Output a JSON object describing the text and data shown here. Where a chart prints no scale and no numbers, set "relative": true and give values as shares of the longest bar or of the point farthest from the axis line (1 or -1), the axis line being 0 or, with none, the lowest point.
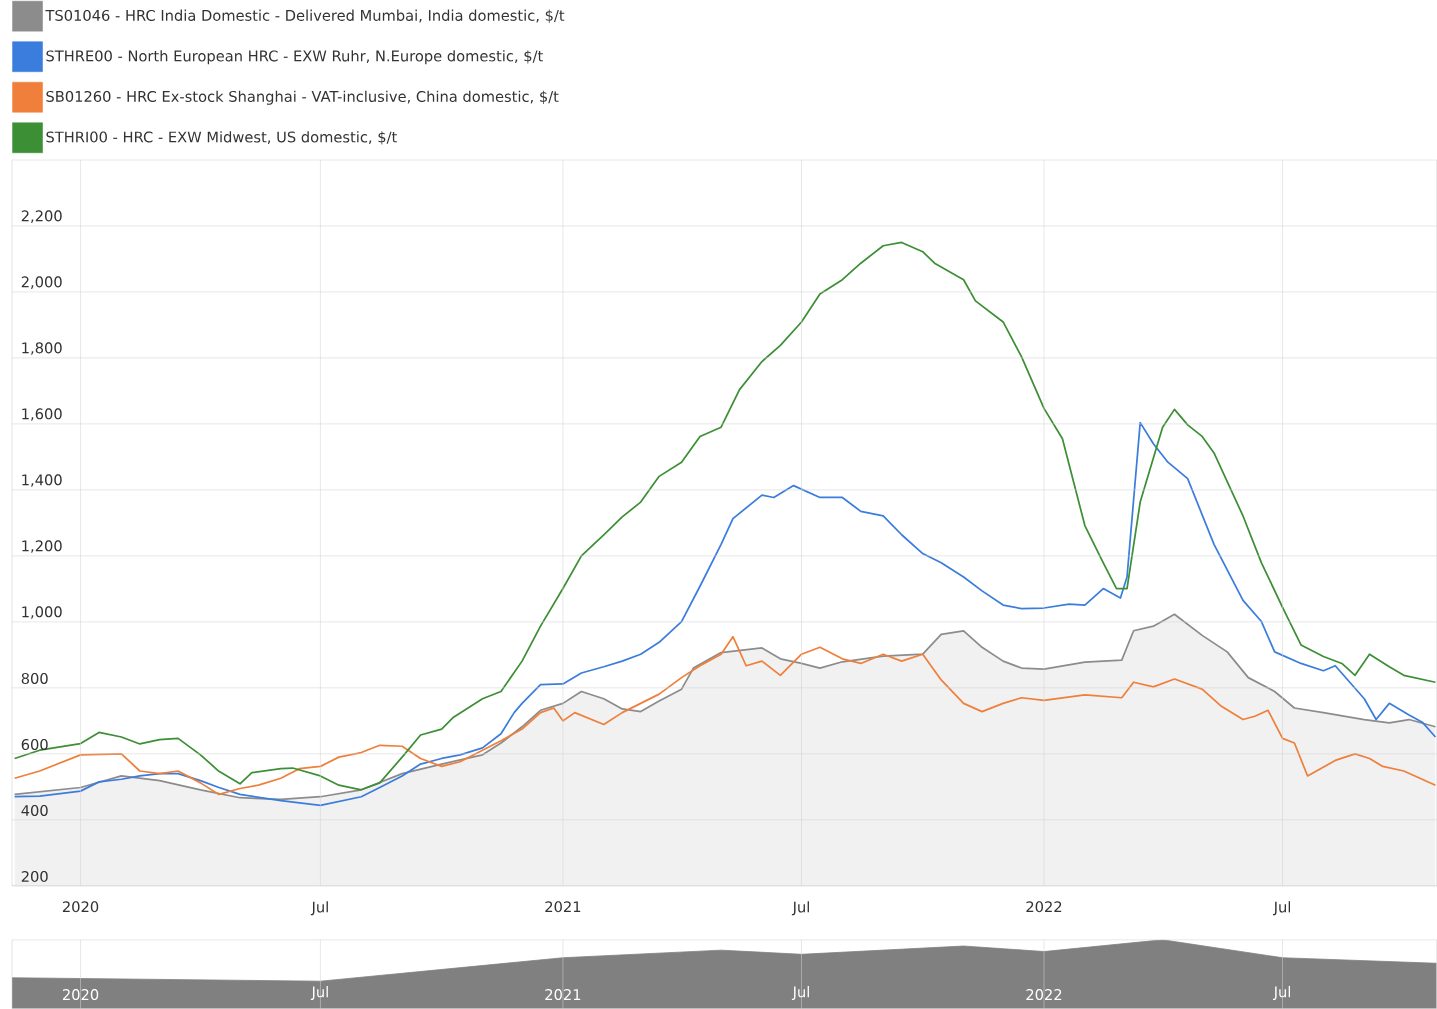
{
  "chart_data": [
    {
      "type": "line",
      "legend": "top",
      "grid": true,
      "marker": "none",
      "line_style": "solid",
      "xlim": [
        "2019-11-10",
        "2022-10-26"
      ],
      "xticks": [
        {
          "value": "2020-01-01",
          "label": "2020"
        },
        {
          "value": "2020-07-01",
          "label": "Jul"
        },
        {
          "value": "2021-01-01",
          "label": "2021"
        },
        {
          "value": "2021-07-01",
          "label": "Jul"
        },
        {
          "value": "2022-01-01",
          "label": "2022"
        },
        {
          "value": "2022-07-01",
          "label": "Jul"
        }
      ],
      "ylim": [
        200,
        2400
      ],
      "yticks": [
        200,
        400,
        600,
        800,
        {
          "value": 1000,
          "label": "1,000"
        },
        {
          "value": 1200,
          "label": "1,200"
        },
        {
          "value": 1400,
          "label": "1,400"
        },
        {
          "value": 1600,
          "label": "1,600"
        },
        {
          "value": 1800,
          "label": "1,800"
        },
        {
          "value": 2000,
          "label": "2,000"
        },
        {
          "value": 2200,
          "label": "2,200"
        }
      ],
      "series": [
        {
          "name": "TS01046 - HRC India Domestic - Delivered Mumbai, India domestic, $/t",
          "type": "area",
          "color": "#8c8c8c",
          "x": [
            "2019-11-12",
            "2020-01-01",
            "2020-02-01",
            "2020-03-01",
            "2020-04-01",
            "2020-05-01",
            "2020-06-01",
            "2020-07-01",
            "2020-08-01",
            "2020-09-01",
            "2020-10-01",
            "2020-11-01",
            "2020-11-15",
            "2020-12-01",
            "2020-12-15",
            "2021-01-01",
            "2021-01-15",
            "2021-02-01",
            "2021-02-15",
            "2021-03-01",
            "2021-03-15",
            "2021-04-01",
            "2021-04-10",
            "2021-05-01",
            "2021-06-01",
            "2021-06-15",
            "2021-07-01",
            "2021-07-15",
            "2021-08-01",
            "2021-09-01",
            "2021-10-01",
            "2021-10-15",
            "2021-11-01",
            "2021-11-15",
            "2021-12-01",
            "2021-12-15",
            "2022-01-01",
            "2022-02-01",
            "2022-03-01",
            "2022-03-10",
            "2022-03-25",
            "2022-04-10",
            "2022-05-01",
            "2022-05-20",
            "2022-06-05",
            "2022-06-25",
            "2022-07-10",
            "2022-08-01",
            "2022-09-01",
            "2022-09-20",
            "2022-10-05",
            "2022-10-25"
          ],
          "values": [
            477,
            498,
            533,
            519,
            491,
            467,
            462,
            470,
            491,
            540,
            569,
            597,
            633,
            682,
            732,
            753,
            789,
            767,
            736,
            728,
            760,
            796,
            860,
            907,
            921,
            888,
            874,
            860,
            879,
            896,
            902,
            962,
            973,
            923,
            881,
            860,
            857,
            878,
            884,
            973,
            987,
            1023,
            959,
            909,
            831,
            789,
            739,
            725,
            704,
            694,
            704,
            682
          ]
        },
        {
          "name": "STHRE00 - North European HRC - EXW Ruhr, N.Europe domestic, $/t",
          "color": "#3b7ddd",
          "x": [
            "2019-11-12",
            "2019-12-01",
            "2020-01-01",
            "2020-01-15",
            "2020-02-01",
            "2020-02-15",
            "2020-03-01",
            "2020-03-15",
            "2020-04-01",
            "2020-04-15",
            "2020-05-01",
            "2020-06-01",
            "2020-07-01",
            "2020-08-01",
            "2020-08-15",
            "2020-09-01",
            "2020-09-15",
            "2020-10-01",
            "2020-10-15",
            "2020-11-01",
            "2020-11-15",
            "2020-11-25",
            "2020-12-01",
            "2020-12-15",
            "2021-01-01",
            "2021-01-15",
            "2021-02-01",
            "2021-02-15",
            "2021-03-01",
            "2021-03-15",
            "2021-04-01",
            "2021-04-15",
            "2021-05-01",
            "2021-05-10",
            "2021-06-01",
            "2021-06-10",
            "2021-06-25",
            "2021-07-15",
            "2021-08-01",
            "2021-08-15",
            "2021-09-01",
            "2021-09-15",
            "2021-10-01",
            "2021-10-15",
            "2021-11-01",
            "2021-11-15",
            "2021-12-01",
            "2021-12-15",
            "2022-01-01",
            "2022-01-20",
            "2022-02-01",
            "2022-02-15",
            "2022-02-28",
            "2022-03-05",
            "2022-03-15",
            "2022-03-25",
            "2022-04-05",
            "2022-04-20",
            "2022-05-10",
            "2022-06-01",
            "2022-06-15",
            "2022-06-25",
            "2022-07-15",
            "2022-08-01",
            "2022-08-10",
            "2022-09-01",
            "2022-09-10",
            "2022-09-20",
            "2022-10-05",
            "2022-10-15",
            "2022-10-25"
          ],
          "values": [
            470,
            472,
            487,
            515,
            523,
            533,
            540,
            540,
            519,
            498,
            477,
            458,
            444,
            470,
            498,
            533,
            569,
            586,
            597,
            618,
            661,
            725,
            753,
            810,
            812,
            845,
            864,
            881,
            902,
            938,
            1001,
            1108,
            1235,
            1313,
            1384,
            1377,
            1413,
            1377,
            1377,
            1335,
            1321,
            1264,
            1207,
            1179,
            1136,
            1094,
            1051,
            1040,
            1042,
            1054,
            1051,
            1101,
            1072,
            1136,
            1604,
            1540,
            1484,
            1434,
            1235,
            1065,
            1001,
            909,
            874,
            852,
            867,
            767,
            704,
            753,
            718,
            696,
            651
          ]
        },
        {
          "name": "SB01260 - HRC Ex-stock Shanghai - VAT-inclusive, China domestic, $/t",
          "color": "#ef7f3a",
          "x": [
            "2019-11-12",
            "2019-12-01",
            "2020-01-01",
            "2020-02-01",
            "2020-02-15",
            "2020-03-01",
            "2020-03-15",
            "2020-04-01",
            "2020-04-15",
            "2020-05-01",
            "2020-05-15",
            "2020-06-01",
            "2020-06-15",
            "2020-07-01",
            "2020-07-15",
            "2020-08-01",
            "2020-08-15",
            "2020-09-01",
            "2020-09-15",
            "2020-10-01",
            "2020-10-15",
            "2020-11-01",
            "2020-11-15",
            "2020-12-01",
            "2020-12-15",
            "2020-12-25",
            "2021-01-01",
            "2021-01-10",
            "2021-02-01",
            "2021-02-15",
            "2021-03-01",
            "2021-03-15",
            "2021-04-01",
            "2021-04-15",
            "2021-05-01",
            "2021-05-10",
            "2021-05-20",
            "2021-06-01",
            "2021-06-15",
            "2021-07-01",
            "2021-07-15",
            "2021-08-01",
            "2021-08-15",
            "2021-09-01",
            "2021-09-15",
            "2021-10-01",
            "2021-10-15",
            "2021-11-01",
            "2021-11-15",
            "2021-12-01",
            "2021-12-15",
            "2022-01-01",
            "2022-02-01",
            "2022-03-01",
            "2022-03-10",
            "2022-03-25",
            "2022-04-10",
            "2022-05-01",
            "2022-05-15",
            "2022-06-01",
            "2022-06-10",
            "2022-06-20",
            "2022-07-01",
            "2022-07-10",
            "2022-07-20",
            "2022-08-10",
            "2022-08-25",
            "2022-09-05",
            "2022-09-15",
            "2022-10-01",
            "2022-10-25"
          ],
          "values": [
            526,
            548,
            597,
            600,
            548,
            540,
            548,
            512,
            477,
            495,
            505,
            526,
            555,
            562,
            590,
            604,
            626,
            623,
            586,
            562,
            576,
            611,
            640,
            675,
            725,
            739,
            700,
            725,
            689,
            725,
            753,
            781,
            831,
            867,
            902,
            955,
            867,
            881,
            838,
            902,
            923,
            888,
            874,
            902,
            881,
            902,
            824,
            753,
            728,
            753,
            770,
            762,
            779,
            770,
            817,
            803,
            827,
            796,
            746,
            704,
            714,
            732,
            647,
            633,
            533,
            580,
            600,
            586,
            562,
            548,
            505
          ]
        },
        {
          "name": "STHRI00 - HRC - EXW Midwest, US domestic, $/t",
          "color": "#3d8f36",
          "x": [
            "2019-11-12",
            "2019-12-01",
            "2020-01-01",
            "2020-01-15",
            "2020-02-01",
            "2020-02-15",
            "2020-03-01",
            "2020-03-15",
            "2020-04-01",
            "2020-04-15",
            "2020-05-01",
            "2020-05-10",
            "2020-06-01",
            "2020-06-10",
            "2020-07-01",
            "2020-07-15",
            "2020-08-01",
            "2020-08-15",
            "2020-09-01",
            "2020-09-15",
            "2020-10-01",
            "2020-10-10",
            "2020-11-01",
            "2020-11-15",
            "2020-12-01",
            "2020-12-15",
            "2021-01-01",
            "2021-01-15",
            "2021-02-01",
            "2021-02-15",
            "2021-03-01",
            "2021-03-15",
            "2021-04-01",
            "2021-04-15",
            "2021-05-01",
            "2021-05-15",
            "2021-06-01",
            "2021-06-15",
            "2021-07-01",
            "2021-07-15",
            "2021-08-01",
            "2021-08-15",
            "2021-09-01",
            "2021-09-15",
            "2021-10-01",
            "2021-10-10",
            "2021-11-01",
            "2021-11-10",
            "2021-12-01",
            "2021-12-15",
            "2022-01-01",
            "2022-01-15",
            "2022-02-01",
            "2022-02-15",
            "2022-02-25",
            "2022-03-05",
            "2022-03-15",
            "2022-04-01",
            "2022-04-10",
            "2022-04-20",
            "2022-05-01",
            "2022-05-10",
            "2022-06-01",
            "2022-06-15",
            "2022-07-01",
            "2022-07-15",
            "2022-08-01",
            "2022-08-15",
            "2022-08-25",
            "2022-09-05",
            "2022-09-20",
            "2022-10-01",
            "2022-10-25"
          ],
          "values": [
            586,
            611,
            631,
            665,
            651,
            630,
            643,
            647,
            597,
            547,
            509,
            543,
            555,
            557,
            533,
            505,
            491,
            512,
            590,
            657,
            675,
            711,
            767,
            789,
            881,
            987,
            1101,
            1200,
            1264,
            1318,
            1363,
            1441,
            1484,
            1562,
            1590,
            1704,
            1789,
            1838,
            1909,
            1994,
            2037,
            2087,
            2140,
            2150,
            2122,
            2087,
            2037,
            1973,
            1909,
            1803,
            1647,
            1555,
            1292,
            1179,
            1101,
            1101,
            1363,
            1590,
            1644,
            1597,
            1562,
            1512,
            1321,
            1179,
            1044,
            930,
            895,
            874,
            838,
            902,
            864,
            838,
            817
          ]
        }
      ]
    },
    {
      "type": "area",
      "relative": true,
      "grid": "x",
      "xlim": [
        "2019-11-10",
        "2022-10-26"
      ],
      "xticks": [
        {
          "value": "2020-01-01",
          "label": "2020"
        },
        {
          "value": "2020-07-01",
          "label": "Jul"
        },
        {
          "value": "2021-01-01",
          "label": "2021"
        },
        {
          "value": "2021-07-01",
          "label": "Jul"
        },
        {
          "value": "2022-01-01",
          "label": "2022"
        },
        {
          "value": "2022-07-01",
          "label": "Jul"
        }
      ],
      "series": [
        {
          "color": "#808080",
          "x": [
            "2019-11-10",
            "2020-07-01",
            "2021-01-01",
            "2021-05-01",
            "2021-07-01",
            "2021-11-01",
            "2022-01-01",
            "2022-04-01",
            "2022-07-01",
            "2022-10-26"
          ],
          "values": [
            0.45,
            0.4,
            0.74,
            0.85,
            0.79,
            0.91,
            0.83,
            1,
            0.74,
            0.66
          ]
        }
      ]
    }
  ]
}
